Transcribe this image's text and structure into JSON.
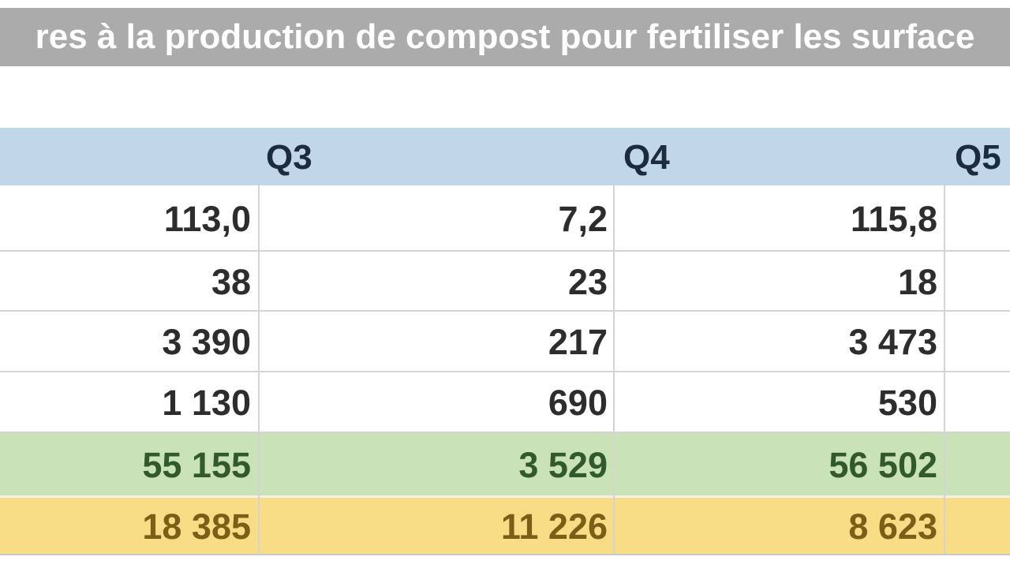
{
  "title": {
    "text": "res à la production de compost pour fertiliser les surface"
  },
  "spreadsheet": {
    "header": {
      "columns": [
        {
          "label": "Q3"
        },
        {
          "label": "Q4"
        },
        {
          "label": "Q5"
        }
      ]
    },
    "rows": [
      {
        "kind": "data",
        "values": [
          "113,0",
          "7,2",
          "115,8"
        ]
      },
      {
        "kind": "data",
        "values": [
          "38",
          "23",
          "18"
        ]
      },
      {
        "kind": "data",
        "values": [
          "3 390",
          "217",
          "3 473"
        ]
      },
      {
        "kind": "data",
        "values": [
          "1 130",
          "690",
          "530"
        ]
      },
      {
        "kind": "subtotal",
        "values": [
          "55 155",
          "3 529",
          "56 502"
        ]
      },
      {
        "kind": "total",
        "values": [
          "18 385",
          "11 226",
          "8 623"
        ]
      }
    ],
    "number_format": "fr-FR"
  },
  "colors": {
    "title_bar_bg": "#ABABAB",
    "title_text": "#FFFFFF",
    "header_bg": "#C1D6E9",
    "header_text": "#1C2B3D",
    "data_text": "#2D2D2D",
    "subtotal_bg": "#C9E2B8",
    "subtotal_text": "#31592B",
    "total_bg": "#F8DC86",
    "total_text": "#7C5F17",
    "gridline": "#D4D4D4"
  }
}
